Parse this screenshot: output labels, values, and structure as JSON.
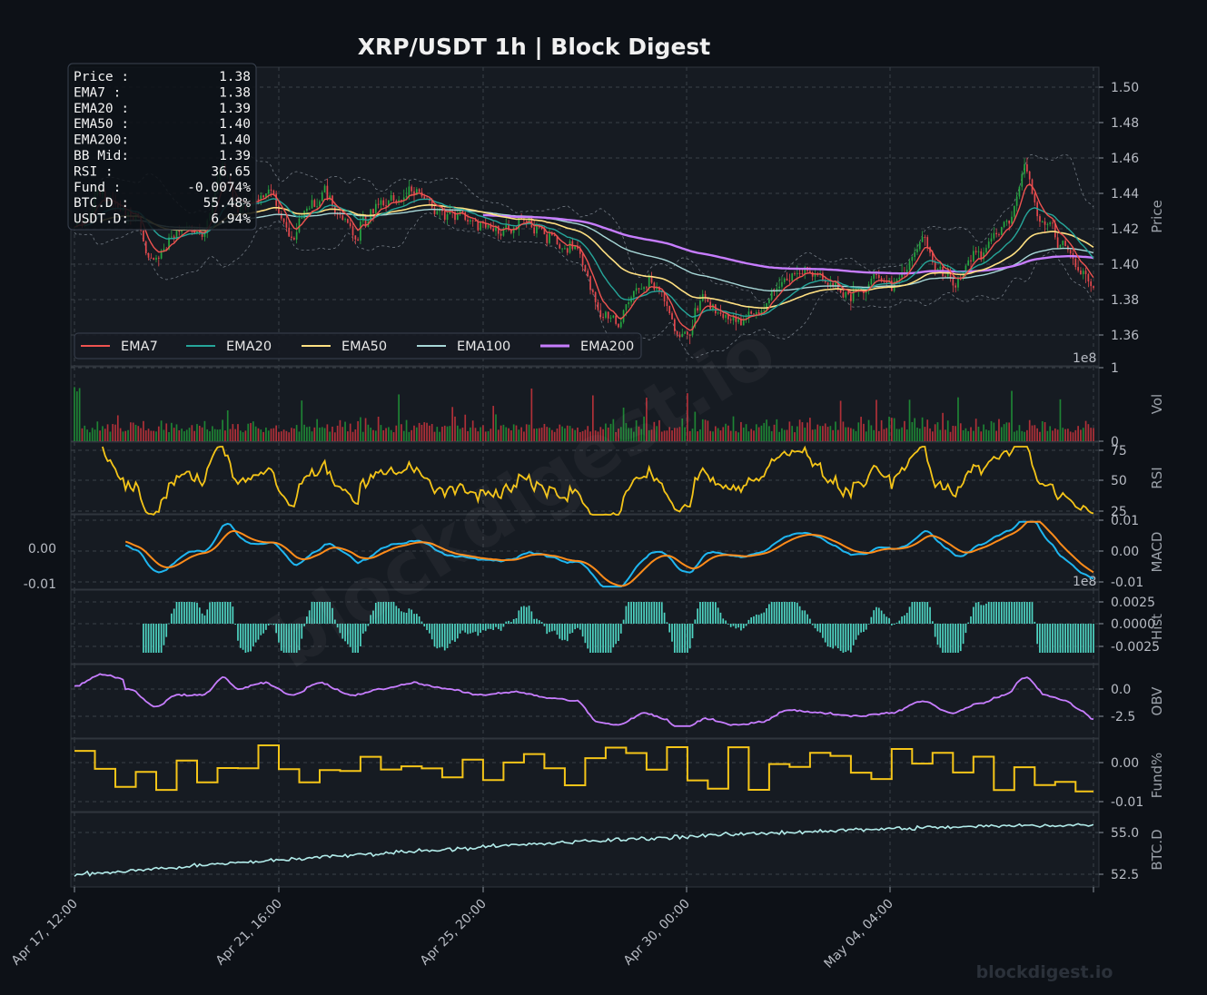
{
  "chart_data": {
    "type": "line",
    "title": "XRP/USDT  1h  |  Block Digest",
    "watermark": "blockdigest.io",
    "footer_text": "blockdigest.io",
    "x_ticks": [
      "Apr 17, 12:00",
      "Apr 21, 16:00",
      "Apr 25, 20:00",
      "Apr 30, 00:00",
      "May 04, 04:00"
    ],
    "info_box": [
      {
        "label": "Price :",
        "value": "1.38"
      },
      {
        "label": "EMA7  :",
        "value": "1.38"
      },
      {
        "label": "EMA20 :",
        "value": "1.39"
      },
      {
        "label": "EMA50 :",
        "value": "1.40"
      },
      {
        "label": "EMA200:",
        "value": "1.40"
      },
      {
        "label": "BB Mid:",
        "value": "1.39"
      },
      {
        "label": "RSI   :",
        "value": "36.65"
      },
      {
        "label": "Fund  :",
        "value": "-0.0074%"
      },
      {
        "label": "BTC.D :",
        "value": "55.48%"
      },
      {
        "label": "USDT.D:",
        "value": "6.94%"
      }
    ],
    "legend": [
      {
        "name": "EMA7",
        "color": "#ef5350"
      },
      {
        "name": "EMA20",
        "color": "#26a69a"
      },
      {
        "name": "EMA50",
        "color": "#ffe082"
      },
      {
        "name": "EMA100",
        "color": "#a8d8d8"
      },
      {
        "name": "EMA200",
        "color": "#c77dff"
      }
    ],
    "panels": {
      "price": {
        "ylabel": "Price",
        "ylim": [
          1.35,
          1.51
        ],
        "ticks": [
          "1.50",
          "1.48",
          "1.46",
          "1.44",
          "1.42",
          "1.40",
          "1.38",
          "1.36"
        ],
        "anchors": [
          [
            0,
            1.42
          ],
          [
            4,
            1.44
          ],
          [
            8,
            1.43
          ],
          [
            12,
            1.4
          ],
          [
            15,
            1.42
          ],
          [
            19,
            1.42
          ],
          [
            22,
            1.45
          ],
          [
            24,
            1.43
          ],
          [
            28,
            1.44
          ],
          [
            32,
            1.42
          ],
          [
            36,
            1.44
          ],
          [
            41,
            1.42
          ],
          [
            45,
            1.43
          ],
          [
            50,
            1.44
          ],
          [
            55,
            1.43
          ],
          [
            60,
            1.42
          ],
          [
            65,
            1.425
          ],
          [
            70,
            1.415
          ],
          [
            74,
            1.41
          ],
          [
            77,
            1.375
          ],
          [
            80,
            1.37
          ],
          [
            84,
            1.39
          ],
          [
            87,
            1.38
          ],
          [
            89,
            1.36
          ],
          [
            93,
            1.38
          ],
          [
            97,
            1.37
          ],
          [
            101,
            1.375
          ],
          [
            105,
            1.395
          ],
          [
            110,
            1.39
          ],
          [
            115,
            1.385
          ],
          [
            120,
            1.39
          ],
          [
            125,
            1.41
          ],
          [
            129,
            1.39
          ],
          [
            133,
            1.405
          ],
          [
            137,
            1.42
          ],
          [
            140,
            1.45
          ],
          [
            143,
            1.42
          ],
          [
            146,
            1.41
          ],
          [
            148,
            1.395
          ],
          [
            150,
            1.38
          ]
        ]
      },
      "volume": {
        "ylabel": "Vol",
        "offset_label": "1e8",
        "ticks": [
          "1",
          "0"
        ],
        "ylim": [
          0,
          1.0
        ]
      },
      "rsi": {
        "ylabel": "RSI",
        "ticks": [
          "75",
          "50",
          "25"
        ],
        "ylim": [
          20,
          80
        ],
        "last": 36.65
      },
      "macd": {
        "ylabel": "MACD",
        "ticks": [
          "0.01",
          "0.00",
          "-0.01"
        ],
        "left_ticks": [
          "0.00",
          "-0.01"
        ],
        "ylim": [
          -0.012,
          0.01
        ]
      },
      "hist": {
        "ylabel": "Hist",
        "offset_label": "1e8",
        "ticks": [
          "0.0025",
          "0.0000",
          "-0.0025"
        ],
        "ylim": [
          -0.0033,
          0.0025
        ]
      },
      "obv": {
        "ylabel": "OBV",
        "ticks": [
          "0.0",
          "-2.5"
        ],
        "ylim": [
          -3.5,
          1.8
        ]
      },
      "funding": {
        "ylabel": "Fund%",
        "ticks": [
          "0.00",
          "-0.01"
        ],
        "ylim": [
          -0.0125,
          0.0065
        ],
        "last": -0.0074
      },
      "btcd": {
        "ylabel": "BTC.D",
        "ticks": [
          "55.0",
          "52.5"
        ],
        "ylim": [
          52.0,
          56.0
        ],
        "last": 55.48
      }
    }
  }
}
